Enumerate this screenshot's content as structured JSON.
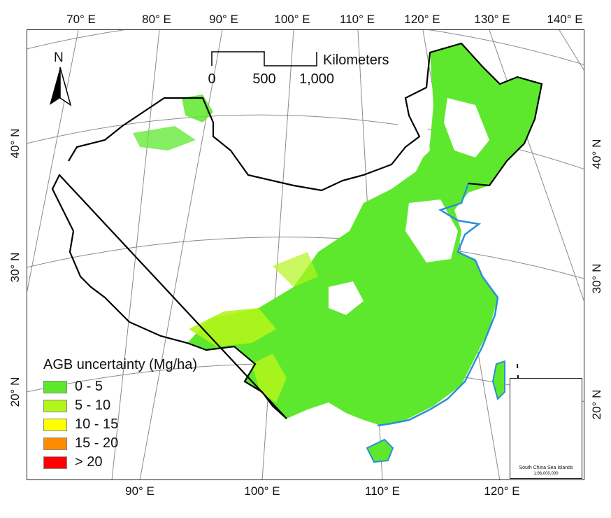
{
  "map": {
    "top_ticks": [
      "70° E",
      "80° E",
      "90° E",
      "100° E",
      "110° E",
      "120° E",
      "130° E",
      "140° E"
    ],
    "bottom_ticks": [
      "90° E",
      "100° E",
      "110° E",
      "120° E"
    ],
    "left_ticks": [
      "40° N",
      "30° N",
      "20° N"
    ],
    "right_ticks": [
      "40° N",
      "30° N",
      "20° N"
    ],
    "north_arrow": "N",
    "north_icon": "north-arrow-icon",
    "colors": {
      "land_fill": "#ffffff",
      "border": "#000000",
      "coast": "#2b8fd6",
      "graticule": "#8a8a8a",
      "vegetation_main": "#5ee82d"
    }
  },
  "scale_bar": {
    "labels": [
      "0",
      "500",
      "1,000"
    ],
    "unit": "Kilometers"
  },
  "legend": {
    "title": "AGB uncertainty  (Mg/ha)",
    "items": [
      {
        "label": "0 - 5",
        "color": "#5ee82d"
      },
      {
        "label": "5 - 10",
        "color": "#b3f51c"
      },
      {
        "label": "10 - 15",
        "color": "#ffff00"
      },
      {
        "label": "15 - 20",
        "color": "#ff8c00"
      },
      {
        "label": "> 20",
        "color": "#ff0000"
      }
    ]
  },
  "inset": {
    "title": "South China Sea Islands",
    "scale": "1:96,000,000"
  }
}
